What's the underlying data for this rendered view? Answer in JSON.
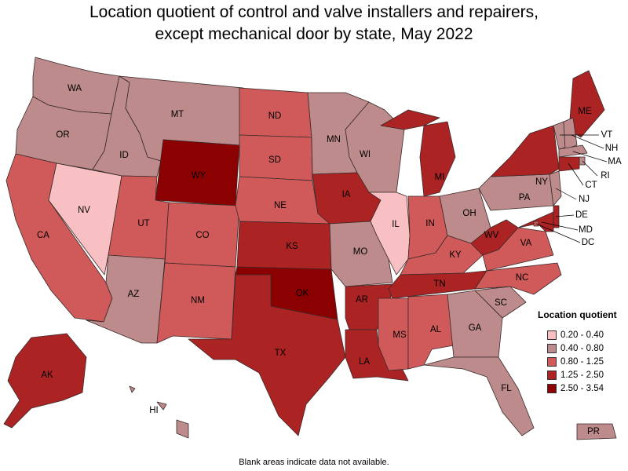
{
  "title_line1": "Location quotient of control and valve installers and repairers,",
  "title_line2": "except mechanical door by state, May 2022",
  "footnote": "Blank areas indicate data not available.",
  "legend": {
    "title": "Location quotient",
    "bins": [
      {
        "label": "0.20 - 0.40",
        "color": "#f9c0c4"
      },
      {
        "label": "0.40 - 0.80",
        "color": "#bd8b8b"
      },
      {
        "label": "0.80 - 1.25",
        "color": "#d05a5a"
      },
      {
        "label": "1.25 - 2.50",
        "color": "#ac2323"
      },
      {
        "label": "2.50 - 3.54",
        "color": "#8b0000"
      }
    ]
  },
  "states": [
    {
      "abbr": "WA",
      "bin": 1
    },
    {
      "abbr": "OR",
      "bin": 1
    },
    {
      "abbr": "CA",
      "bin": 2
    },
    {
      "abbr": "NV",
      "bin": 0
    },
    {
      "abbr": "ID",
      "bin": 1
    },
    {
      "abbr": "MT",
      "bin": 1
    },
    {
      "abbr": "WY",
      "bin": 4
    },
    {
      "abbr": "UT",
      "bin": 2
    },
    {
      "abbr": "AZ",
      "bin": 1
    },
    {
      "abbr": "CO",
      "bin": 2
    },
    {
      "abbr": "NM",
      "bin": 2
    },
    {
      "abbr": "ND",
      "bin": 2
    },
    {
      "abbr": "SD",
      "bin": 2
    },
    {
      "abbr": "NE",
      "bin": 2
    },
    {
      "abbr": "KS",
      "bin": 3
    },
    {
      "abbr": "OK",
      "bin": 4
    },
    {
      "abbr": "TX",
      "bin": 3
    },
    {
      "abbr": "MN",
      "bin": 1
    },
    {
      "abbr": "IA",
      "bin": 3
    },
    {
      "abbr": "MO",
      "bin": 1
    },
    {
      "abbr": "AR",
      "bin": 3
    },
    {
      "abbr": "LA",
      "bin": 3
    },
    {
      "abbr": "WI",
      "bin": 1
    },
    {
      "abbr": "IL",
      "bin": 0
    },
    {
      "abbr": "MI",
      "bin": 3
    },
    {
      "abbr": "IN",
      "bin": 2
    },
    {
      "abbr": "OH",
      "bin": 1
    },
    {
      "abbr": "KY",
      "bin": 2
    },
    {
      "abbr": "TN",
      "bin": 3
    },
    {
      "abbr": "MS",
      "bin": 2
    },
    {
      "abbr": "AL",
      "bin": 2
    },
    {
      "abbr": "GA",
      "bin": 1
    },
    {
      "abbr": "FL",
      "bin": 1
    },
    {
      "abbr": "SC",
      "bin": 1
    },
    {
      "abbr": "NC",
      "bin": 2
    },
    {
      "abbr": "VA",
      "bin": 2
    },
    {
      "abbr": "WV",
      "bin": 3
    },
    {
      "abbr": "PA",
      "bin": 1
    },
    {
      "abbr": "NY",
      "bin": 3
    },
    {
      "abbr": "ME",
      "bin": 3
    },
    {
      "abbr": "VT",
      "bin": 1
    },
    {
      "abbr": "NH",
      "bin": 1
    },
    {
      "abbr": "MA",
      "bin": 1
    },
    {
      "abbr": "RI",
      "bin": 1
    },
    {
      "abbr": "CT",
      "bin": 3
    },
    {
      "abbr": "NJ",
      "bin": 1
    },
    {
      "abbr": "DE",
      "bin": 3
    },
    {
      "abbr": "MD",
      "bin": 3
    },
    {
      "abbr": "DC",
      "bin": 2
    },
    {
      "abbr": "AK",
      "bin": 3
    },
    {
      "abbr": "HI",
      "bin": 1
    },
    {
      "abbr": "PR",
      "bin": 1
    }
  ]
}
